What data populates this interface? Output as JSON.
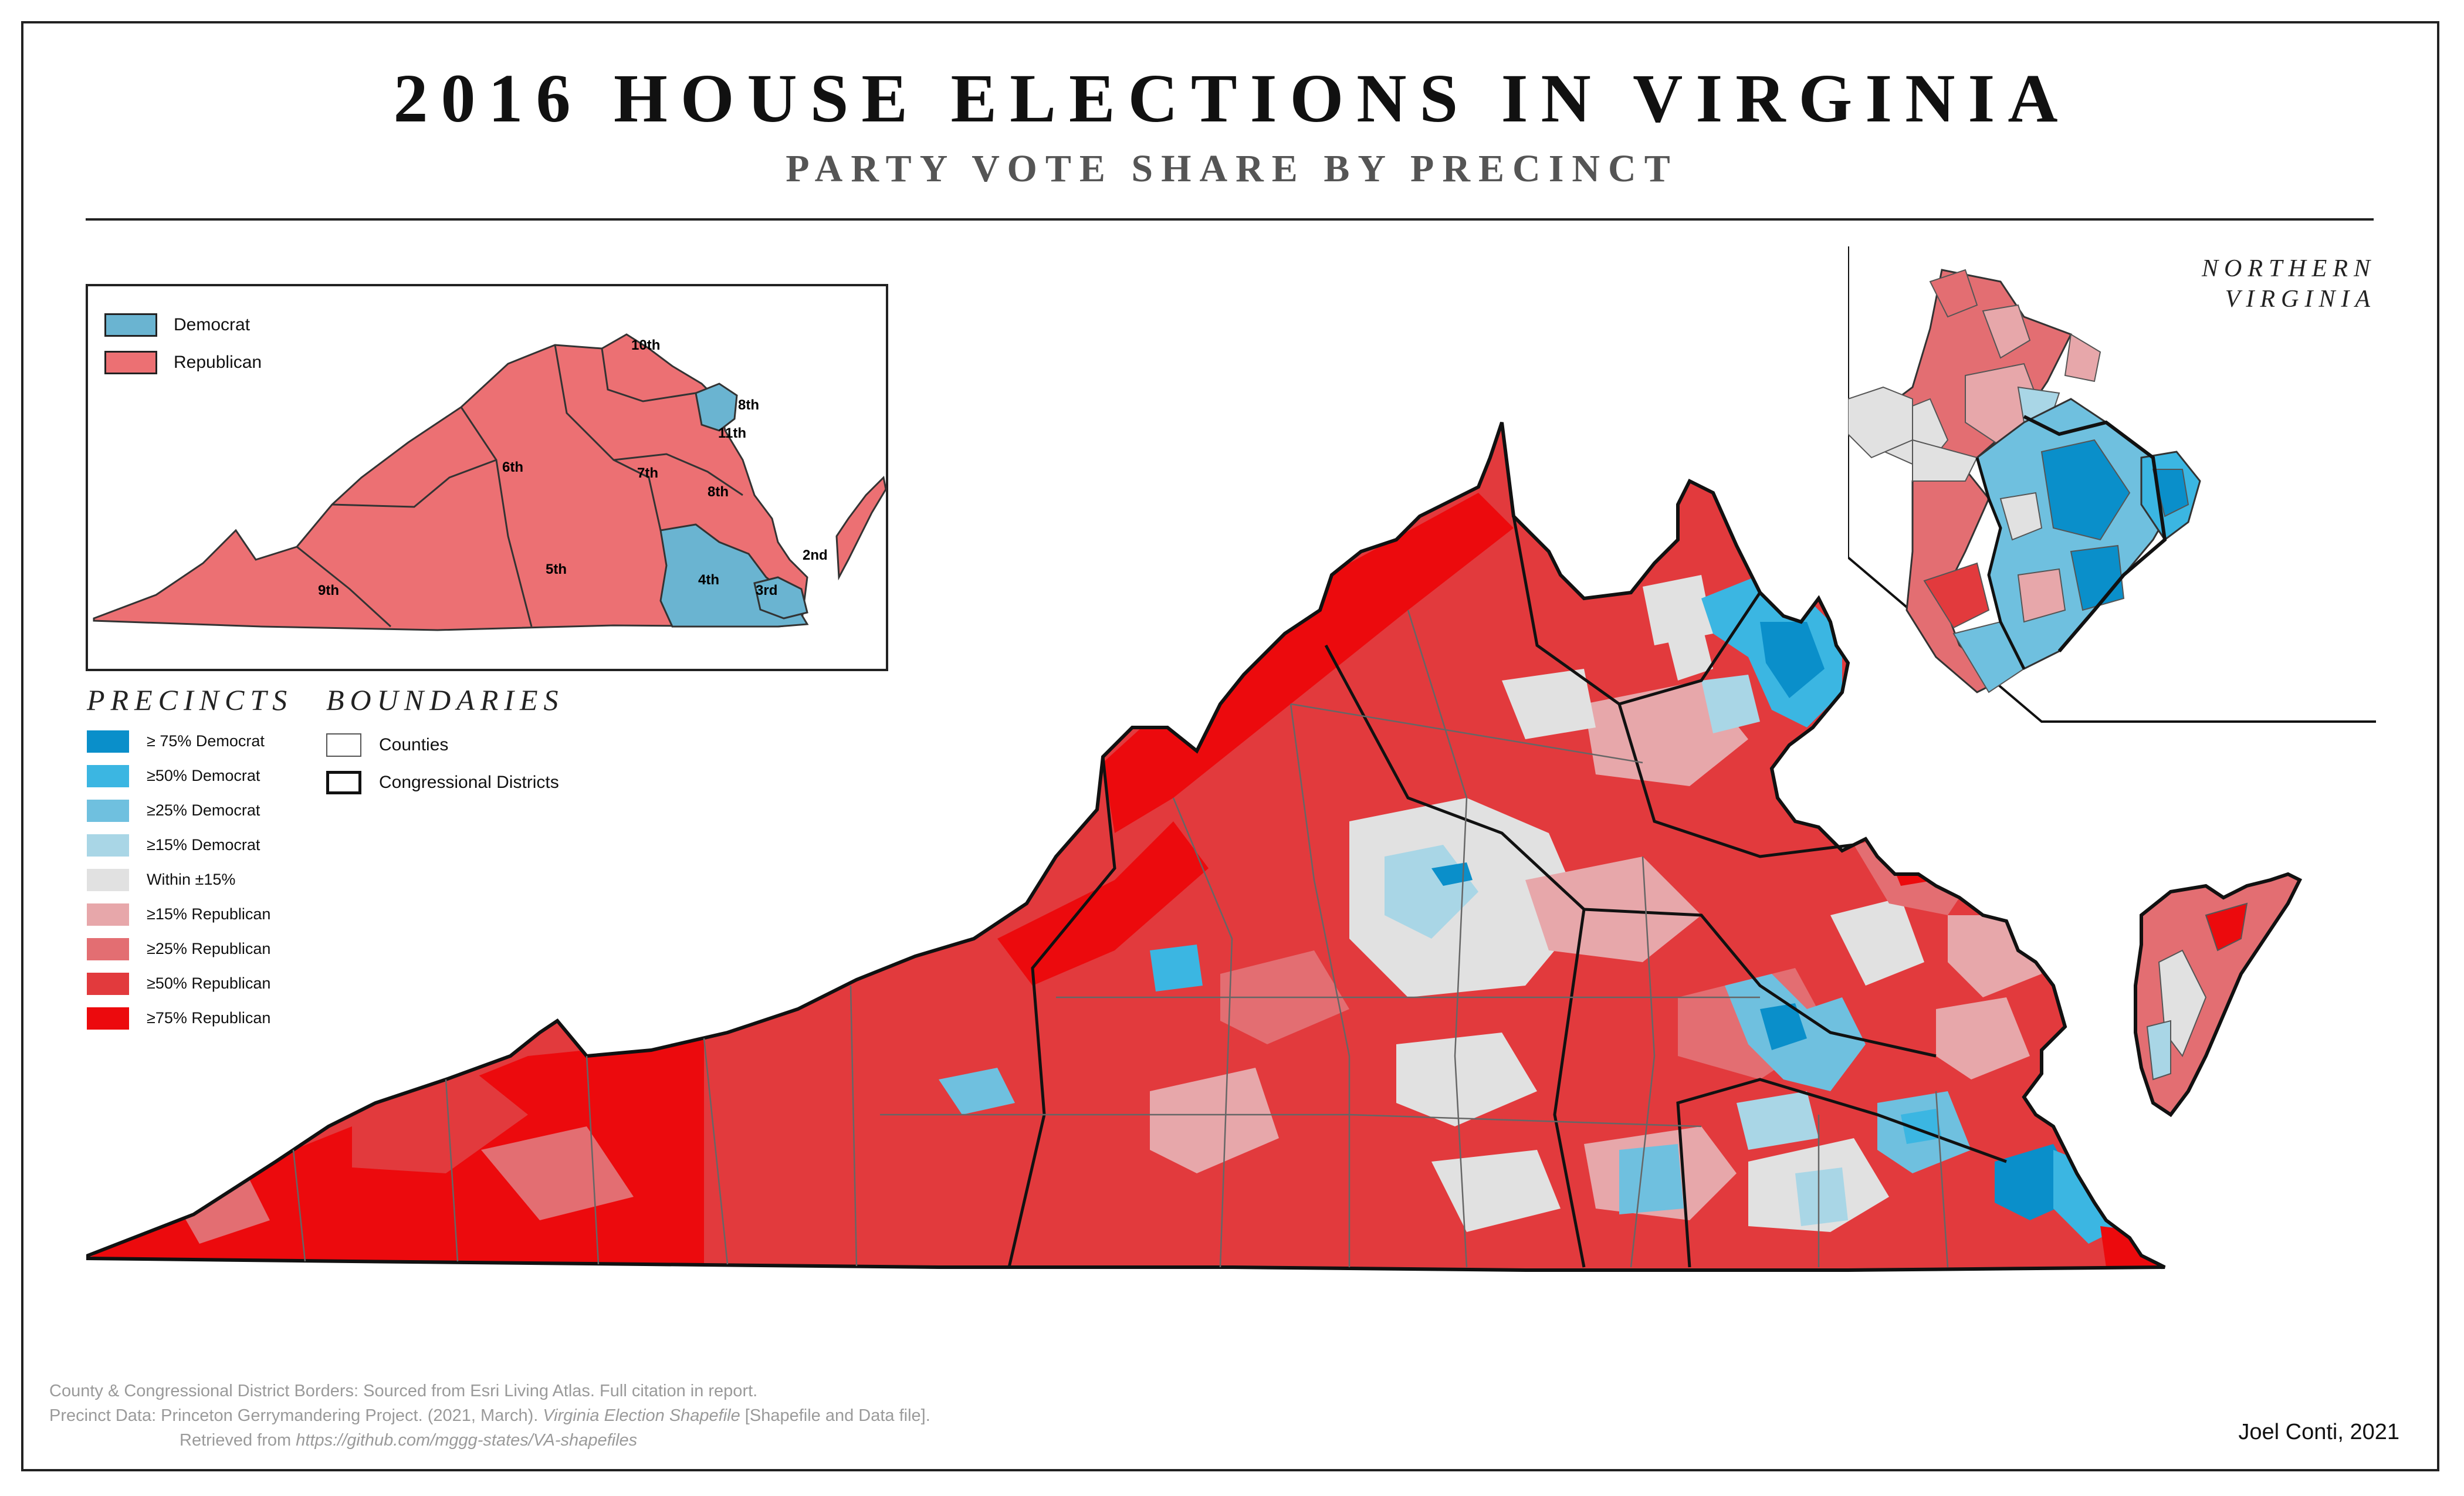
{
  "title": "2016 HOUSE ELECTIONS IN VIRGINIA",
  "subtitle": "PARTY VOTE SHARE BY PRECINCT",
  "colors": {
    "dem75": "#0a8fca",
    "dem50": "#3bb6e2",
    "dem25": "#6fc0df",
    "dem15": "#a9d6e6",
    "within": "#e1e1e1",
    "rep15": "#e7a7aa",
    "rep25": "#e36e72",
    "rep50": "#e23a3d",
    "rep75": "#ec0a0d",
    "inset_dem": "#6ab4d1",
    "inset_rep": "#ec7073"
  },
  "inset": {
    "legend": [
      {
        "label": "Democrat",
        "color": "#6ab4d1"
      },
      {
        "label": "Republican",
        "color": "#ec7073"
      }
    ],
    "district_labels": [
      "10th",
      "8th",
      "11th",
      "6th",
      "7th",
      "8th",
      "9th",
      "5th",
      "4th",
      "3rd",
      "2nd"
    ]
  },
  "precincts": {
    "heading": "PRECINCTS",
    "items": [
      {
        "label": "≥ 75% Democrat",
        "color": "#0a8fca"
      },
      {
        "label": "≥50% Democrat",
        "color": "#3bb6e2"
      },
      {
        "label": "≥25% Democrat",
        "color": "#6fc0df"
      },
      {
        "label": "≥15% Democrat",
        "color": "#a9d6e6"
      },
      {
        "label": "Within ±15%",
        "color": "#e1e1e1"
      },
      {
        "label": "≥15% Republican",
        "color": "#e7a7aa"
      },
      {
        "label": "≥25% Republican",
        "color": "#e36e72"
      },
      {
        "label": "≥50% Republican",
        "color": "#e23a3d"
      },
      {
        "label": "≥75% Republican",
        "color": "#ec0a0d"
      }
    ]
  },
  "boundaries": {
    "heading": "BOUNDARIES",
    "items": [
      {
        "label": "Counties"
      },
      {
        "label": "Congressional Districts"
      }
    ]
  },
  "nova": {
    "line1": "NORTHERN",
    "line2": "VIRGINIA"
  },
  "citation": {
    "line1": "County & Congressional District Borders: Sourced from Esri Living Atlas. Full citation in report.",
    "line2_prefix": "Precinct Data: Princeton Gerrymandering Project. (2021, March). ",
    "line2_italic": "Virginia Election Shapefile",
    "line2_suffix": " [Shapefile and Data file].",
    "line3_prefix": "Retrieved from ",
    "line3_url": "https://github.com/mggg-states/VA-shapefiles"
  },
  "author": "Joel Conti, 2021"
}
